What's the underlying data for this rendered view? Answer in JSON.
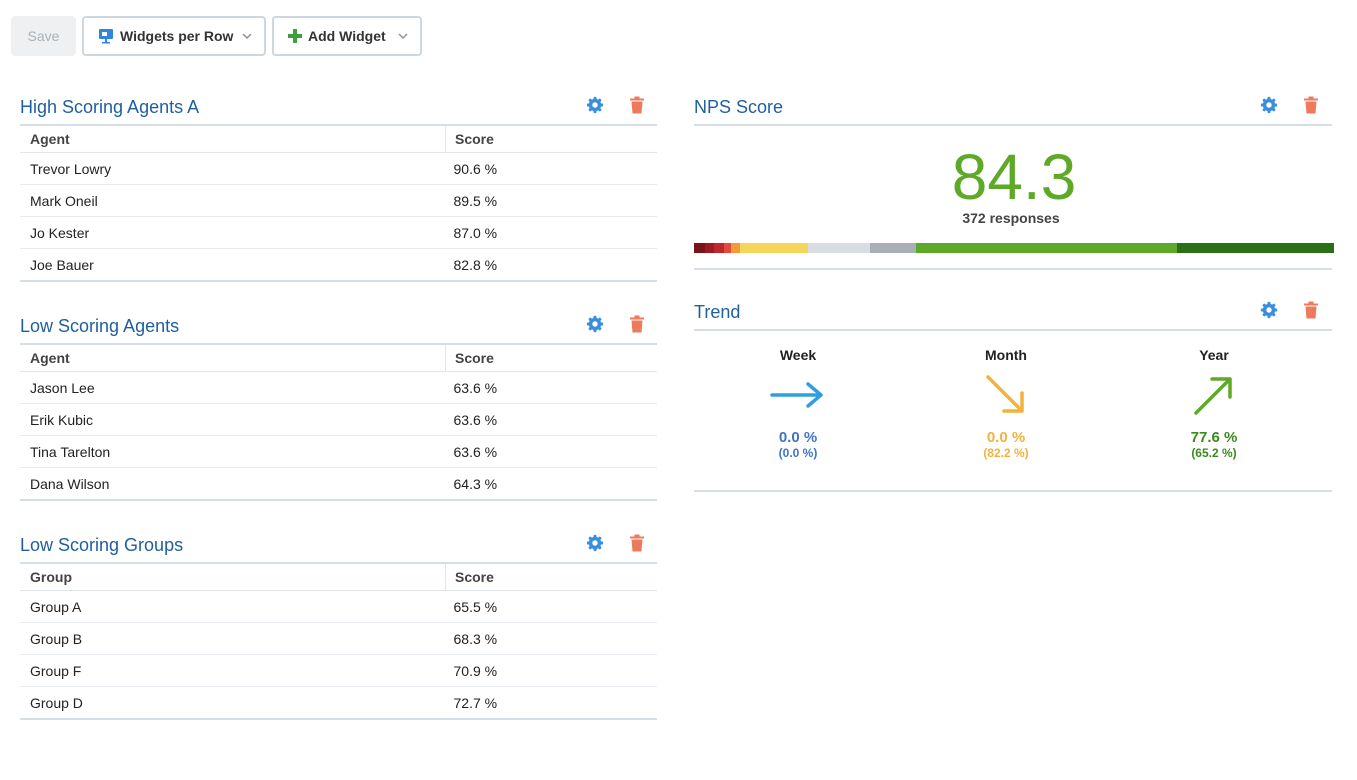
{
  "toolbar": {
    "save_label": "Save",
    "widgets_per_row_label": "Widgets per Row",
    "widgets_per_row_icon": "presentation-icon",
    "add_widget_label": "Add Widget",
    "add_widget_icon": "plus-icon"
  },
  "colors": {
    "title": "#1f5fa0",
    "gear": "#3a8fdc",
    "trash": "#ee7a5e",
    "nps_green": "#5fa928"
  },
  "high_agents": {
    "title": "High Scoring Agents A",
    "col1": "Agent",
    "col2": "Score",
    "rows": [
      {
        "name": "Trevor Lowry",
        "score": "90.6 %"
      },
      {
        "name": "Mark Oneil",
        "score": "89.5 %"
      },
      {
        "name": "Jo Kester",
        "score": "87.0 %"
      },
      {
        "name": "Joe Bauer",
        "score": "82.8 %"
      }
    ]
  },
  "low_agents": {
    "title": "Low Scoring Agents",
    "col1": "Agent",
    "col2": "Score",
    "rows": [
      {
        "name": "Jason Lee",
        "score": "63.6 %"
      },
      {
        "name": "Erik Kubic",
        "score": "63.6 %"
      },
      {
        "name": "Tina Tarelton",
        "score": "63.6 %"
      },
      {
        "name": "Dana Wilson",
        "score": "64.3 %"
      }
    ]
  },
  "low_groups": {
    "title": "Low Scoring Groups",
    "col1": "Group",
    "col2": "Score",
    "rows": [
      {
        "name": "Group A",
        "score": "65.5 %"
      },
      {
        "name": "Group B",
        "score": "68.3 %"
      },
      {
        "name": "Group F",
        "score": "70.9 %"
      },
      {
        "name": "Group D",
        "score": "72.7 %"
      }
    ]
  },
  "nps": {
    "title": "NPS Score",
    "value": "84.3",
    "responses": "372 responses",
    "distribution": [
      {
        "color": "#7a1418",
        "share": 1.2
      },
      {
        "color": "#9b1b21",
        "share": 1.0
      },
      {
        "color": "#c0262c",
        "share": 1.1
      },
      {
        "color": "#e04b3c",
        "share": 0.8
      },
      {
        "color": "#f39a3a",
        "share": 0.9
      },
      {
        "color": "#f6d65a",
        "share": 7.5
      },
      {
        "color": "#d9dee2",
        "share": 6.8
      },
      {
        "color": "#a8afb5",
        "share": 5.0
      },
      {
        "color": "#5fa928",
        "share": 28.5
      },
      {
        "color": "#2c6e14",
        "share": 17.2
      }
    ]
  },
  "trend": {
    "title": "Trend",
    "items": [
      {
        "label": "Week",
        "value": "0.0 %",
        "sub": "(0.0 %)",
        "direction": "right",
        "color": "#2f9fe0",
        "value_color": "#3f74c6"
      },
      {
        "label": "Month",
        "value": "0.0 %",
        "sub": "(82.2 %)",
        "direction": "down-right",
        "color": "#f4b23a",
        "value_color": "#f4b23a"
      },
      {
        "label": "Year",
        "value": "77.6 %",
        "sub": "(65.2 %)",
        "direction": "up-right",
        "color": "#5fa928",
        "value_color": "#3b8a1e"
      }
    ]
  }
}
